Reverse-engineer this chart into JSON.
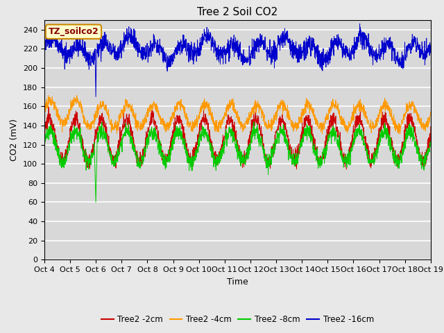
{
  "title": "Tree 2 Soil CO2",
  "ylabel": "CO2 (mV)",
  "xlabel": "Time",
  "annotation": "TZ_soilco2",
  "annotation_facecolor": "#ffffcc",
  "annotation_edgecolor": "#cc8800",
  "legend_labels": [
    "Tree2 -2cm",
    "Tree2 -4cm",
    "Tree2 -8cm",
    "Tree2 -16cm"
  ],
  "line_colors": [
    "#cc0000",
    "#ff9900",
    "#00cc00",
    "#0000cc"
  ],
  "ylim": [
    0,
    250
  ],
  "yticks": [
    0,
    20,
    40,
    60,
    80,
    100,
    120,
    140,
    160,
    180,
    200,
    220,
    240
  ],
  "xlim": [
    0,
    15
  ],
  "num_points": 2000,
  "plot_bg_color": "#d8d8d8",
  "fig_bg_color": "#e8e8e8",
  "title_fontsize": 11,
  "axis_label_fontsize": 9,
  "tick_fontsize": 8
}
